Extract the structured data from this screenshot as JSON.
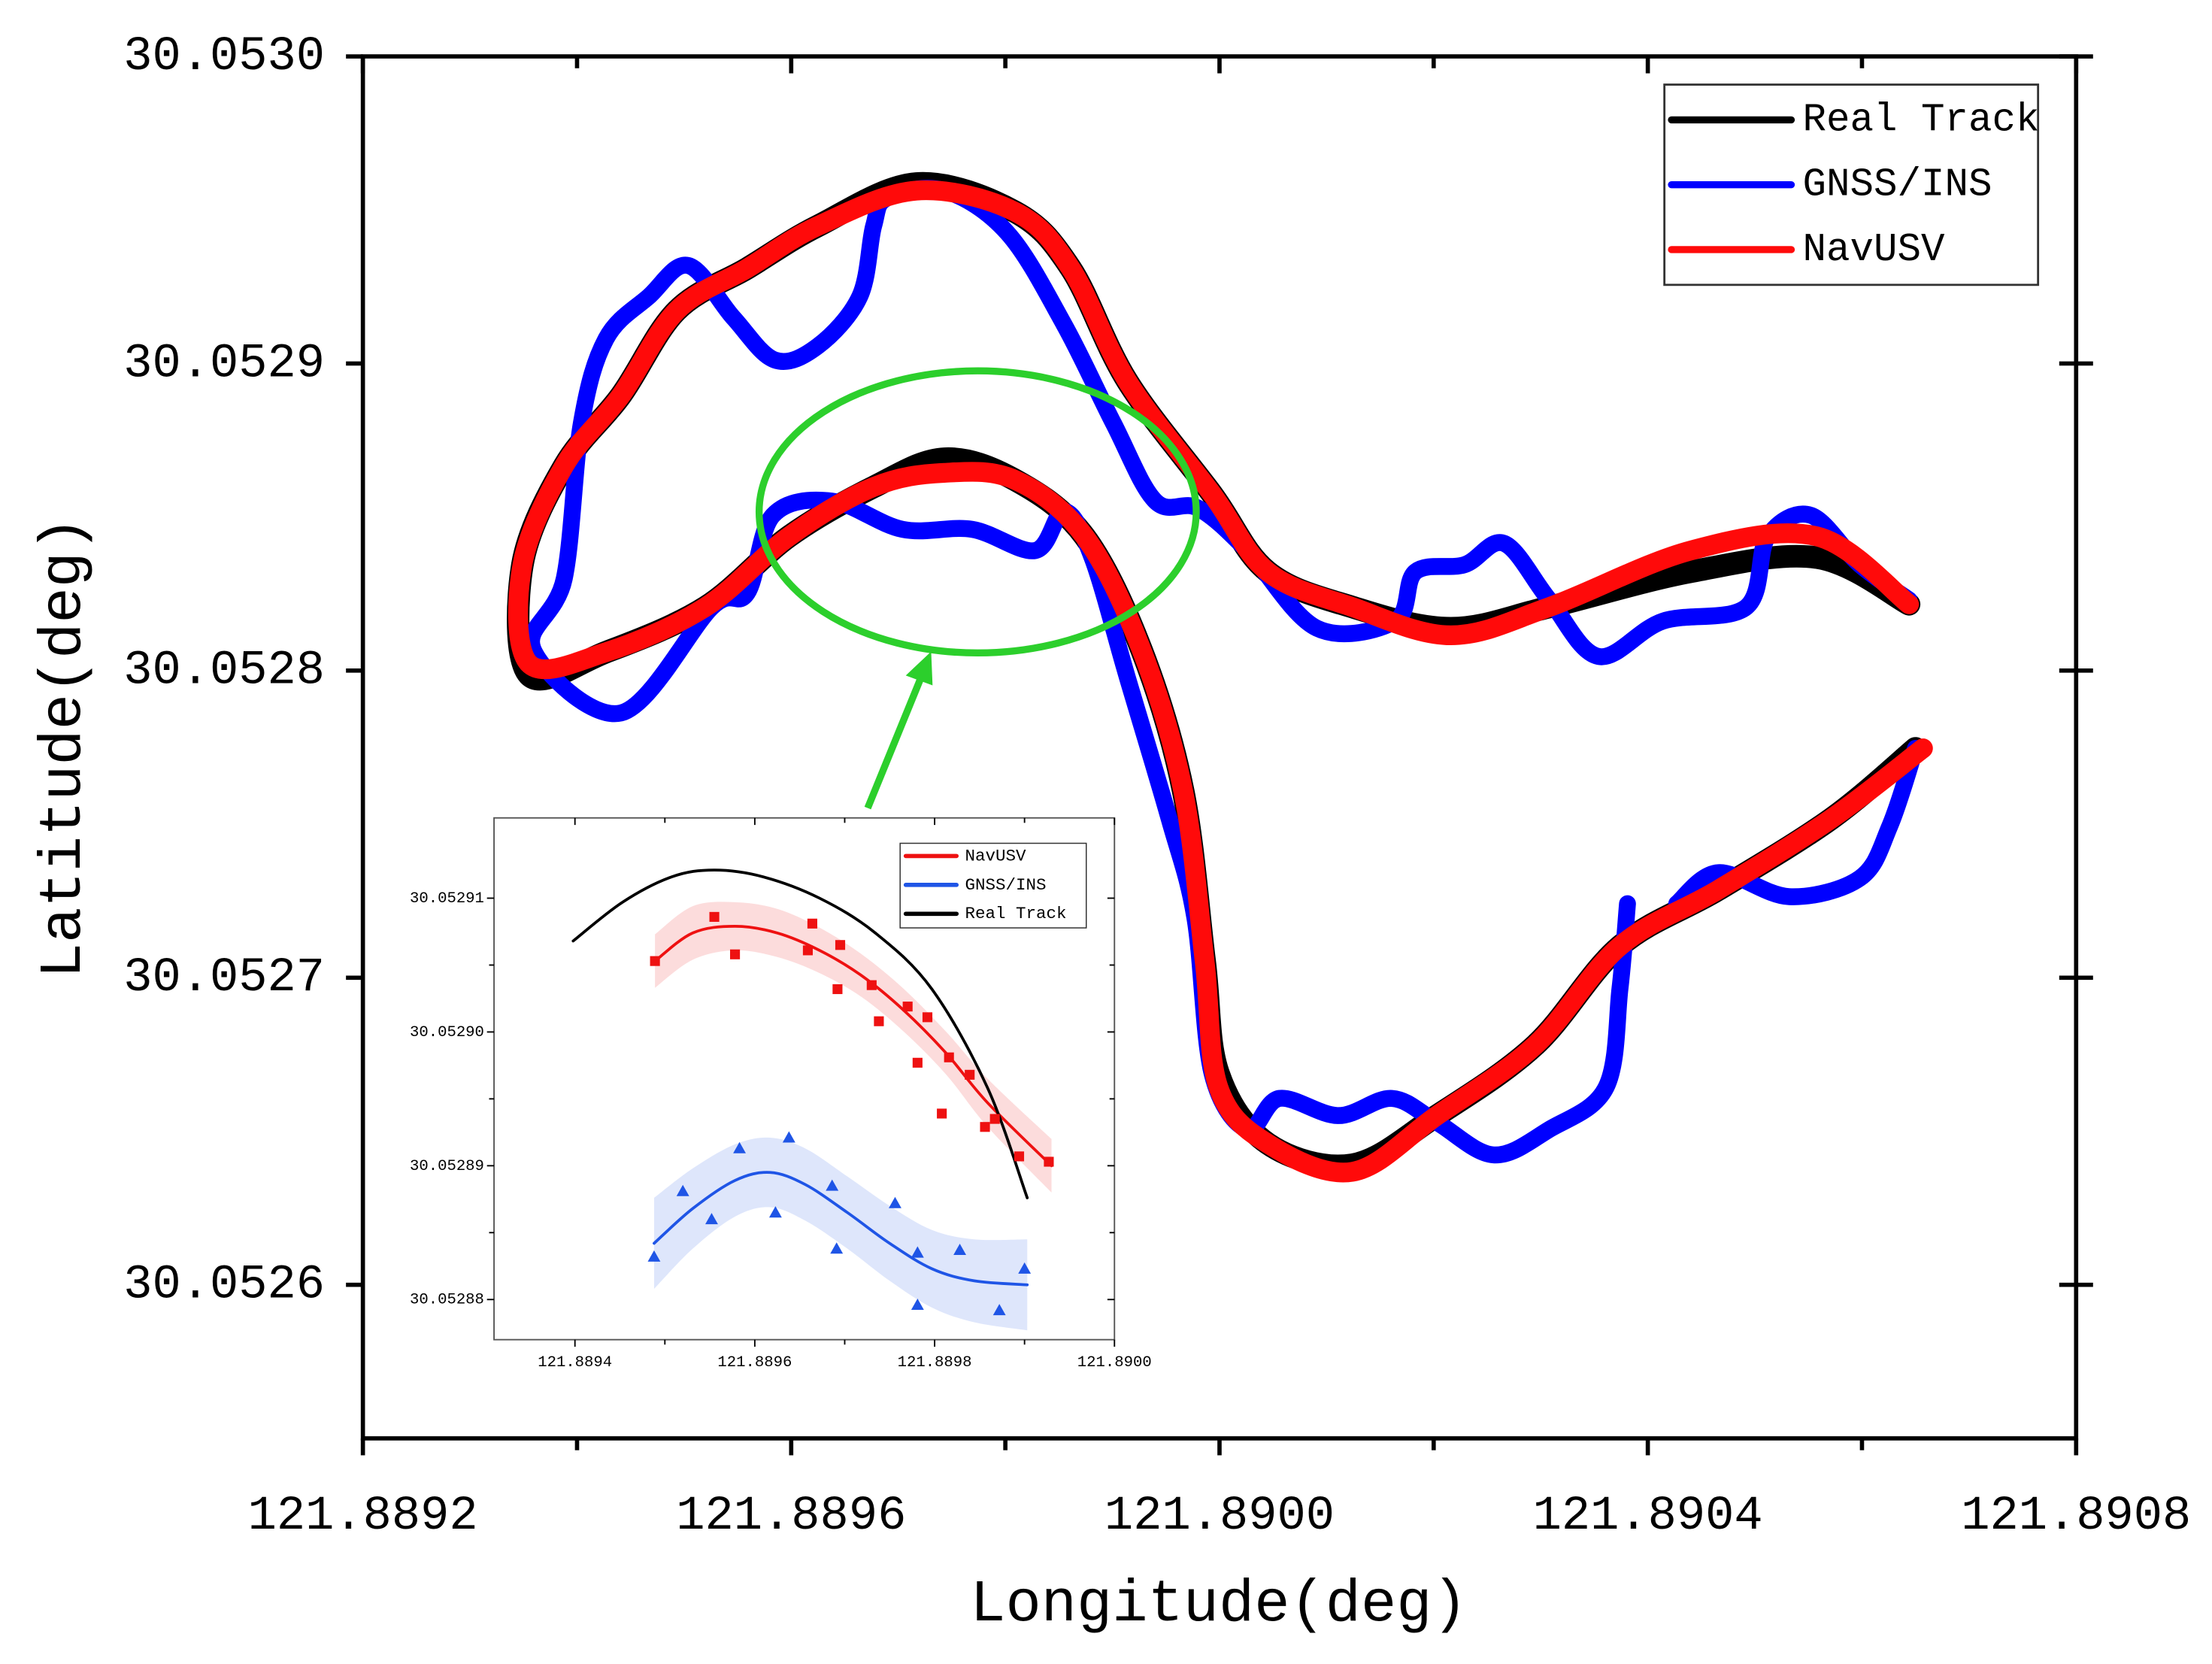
{
  "chart_data": [
    {
      "type": "line",
      "xlabel": "Longitude(deg)",
      "ylabel": "Latitude(deg)",
      "xlim": [
        121.8892,
        121.8908
      ],
      "ylim": [
        30.05255,
        30.053
      ],
      "xticks": [
        121.8892,
        121.8896,
        {
          "value": 121.89,
          "label": "121.8900"
        },
        121.8904,
        121.8908
      ],
      "xticks_minor": [
        121.8894,
        121.8898,
        121.8902,
        121.8906
      ],
      "yticks": [
        30.0526,
        30.0527,
        30.0528,
        30.0529,
        {
          "value": 30.053,
          "label": "30.0530"
        }
      ],
      "legend": "upper right",
      "series": [
        {
          "name": "Real Track",
          "color": "#000000",
          "x": [
            121.890644,
            121.890558,
            121.89044,
            121.890308,
            121.890216,
            121.890124,
            121.890045,
            121.889993,
            121.889914,
            121.889861,
            121.889809,
            121.889717,
            121.889625,
            121.889559,
            121.889493,
            121.889441,
            121.889388,
            121.889349,
            121.889355,
            121.889427,
            121.88952,
            121.889598,
            121.889677,
            121.889743,
            121.889809,
            121.889874,
            121.889927,
            121.889966,
            121.889986,
            121.889999,
            121.890045,
            121.890124,
            121.890203,
            121.890295,
            121.890374,
            121.890466,
            121.890571,
            121.89065
          ],
          "values": [
            30.0528216,
            30.0528368,
            30.0528322,
            30.0528207,
            30.0528138,
            30.0528207,
            30.0528322,
            30.0528575,
            30.0528942,
            30.052931,
            30.0529494,
            30.0529586,
            30.0529448,
            30.052931,
            30.0529172,
            30.0528896,
            30.0528667,
            30.0528345,
            30.0527986,
            30.052806,
            30.0528207,
            30.0528437,
            30.0528598,
            30.052869,
            30.0528621,
            30.0528437,
            30.0528069,
            30.0527609,
            30.0527057,
            30.0526689,
            30.052646,
            30.0526391,
            30.0526551,
            30.0526781,
            30.0527103,
            30.0527287,
            30.0527517,
            30.0527747
          ]
        },
        {
          "name": "GNSS/INS",
          "color": "#0000ff",
          "x": [
            121.890644,
            121.890598,
            121.890552,
            121.890512,
            121.890492,
            121.890414,
            121.890354,
            121.890308,
            121.890266,
            121.890229,
            121.890183,
            121.890164,
            121.890091,
            121.890026,
            121.88998,
            121.88994,
            121.889901,
            121.889855,
            121.889802,
            121.889743,
            121.88969,
            121.889677,
            121.889664,
            121.889625,
            121.889585,
            121.889546,
            121.889504,
            121.889467,
            121.889427,
            121.889404,
            121.889388,
            121.889359,
            121.889441,
            121.889526,
            121.889559,
            121.889583,
            121.889638,
            121.889704,
            121.889769,
            121.889828,
            121.889855,
            121.889881,
            121.889914,
            121.889953,
            121.889977,
            121.889993,
            121.890026,
            121.890056,
            121.890111,
            121.890161,
            121.890203,
            121.890256,
            121.890308,
            121.890361,
            121.890374,
            121.890381,
            null,
            121.890427,
            121.890466,
            121.890532,
            121.890598,
            121.890626,
            121.89065
          ],
          "values": [
            30.052823,
            30.0528345,
            30.0528506,
            30.0528437,
            30.0528207,
            30.0528161,
            30.0528046,
            30.052823,
            30.0528414,
            30.0528345,
            30.0528322,
            30.0528161,
            30.0528138,
            30.0528391,
            30.0528529,
            30.0528552,
            30.0528805,
            30.0529126,
            30.0529425,
            30.0529563,
            30.052954,
            30.0529448,
            30.0529218,
            30.0529057,
            30.0529011,
            30.0529149,
            30.0529319,
            30.0529218,
            30.052908,
            30.0528805,
            30.0528299,
            30.0528069,
            30.0527862,
            30.0528207,
            30.0528253,
            30.0528506,
            30.0528552,
            30.052846,
            30.052846,
            30.0528391,
            30.0528519,
            30.0528368,
            30.0527977,
            30.0527517,
            30.0527195,
            30.0526689,
            30.0526506,
            30.0526607,
            30.0526551,
            30.0526607,
            30.0526529,
            30.0526423,
            30.0526506,
            30.0526643,
            30.0526965,
            30.0527241,
            null,
            30.0527241,
            30.0527342,
            30.0527264,
            30.0527324,
            30.0527494,
            30.0527747
          ]
        },
        {
          "name": "NavUSV",
          "color": "#ff0a0a",
          "x": [
            121.890644,
            121.890558,
            121.89044,
            121.890308,
            121.890216,
            121.890124,
            121.890045,
            121.889993,
            121.889914,
            121.889861,
            121.889809,
            121.889717,
            121.889625,
            121.889559,
            121.889493,
            121.889441,
            121.889388,
            121.889349,
            121.889355,
            121.889427,
            121.88952,
            121.889598,
            121.889677,
            121.889743,
            121.889809,
            121.889874,
            121.889927,
            121.889966,
            121.889986,
            121.889999,
            121.890045,
            121.890124,
            121.890203,
            121.890295,
            121.890374,
            121.890466,
            121.890571,
            121.890657
          ],
          "values": [
            30.0528216,
            30.0528437,
            30.0528391,
            30.0528207,
            30.0528115,
            30.0528207,
            30.0528322,
            30.0528575,
            30.0528942,
            30.052931,
            30.0529494,
            30.0529563,
            30.0529448,
            30.052931,
            30.0529172,
            30.0528896,
            30.0528667,
            30.0528345,
            30.0528023,
            30.052806,
            30.0528207,
            30.0528437,
            30.0528598,
            30.0528644,
            30.0528621,
            30.0528437,
            30.0528069,
            30.0527609,
            30.0527057,
            30.0526643,
            30.052646,
            30.0526368,
            30.0526551,
            30.0526781,
            30.0527103,
            30.0527287,
            30.0527517,
            30.0527747
          ]
        }
      ]
    },
    {
      "type": "line",
      "xlim": [
        121.88931,
        121.89
      ],
      "ylim": [
        30.052877,
        30.052916
      ],
      "xticks": [
        121.8894,
        121.8896,
        121.8898,
        {
          "value": 121.89,
          "label": "121.8900"
        }
      ],
      "xticks_minor": [
        121.8895,
        121.8897,
        121.8899
      ],
      "yticks": [
        30.05288,
        30.05289,
        {
          "value": 30.0529,
          "label": "30.05290"
        },
        30.05291
      ],
      "yticks_minor": [
        30.052885,
        30.052895,
        30.052905
      ],
      "legend": "upper right",
      "series": [
        {
          "name": "NavUSV",
          "color": "#ee1111",
          "marker": "square",
          "x": [
            121.889489,
            121.889531,
            121.889578,
            121.889625,
            121.889672,
            121.889719,
            121.889766,
            121.889813,
            121.889859,
            121.88993
          ],
          "values": [
            30.0529053,
            30.0529074,
            30.0529079,
            30.0529074,
            30.0529061,
            30.0529042,
            30.0529016,
            30.0528984,
            30.0528947,
            30.05289
          ],
          "band": {
            "upper": [
              30.0529073,
              30.0529094,
              30.0529097,
              30.0529092,
              30.0529078,
              30.0529058,
              30.0529032,
              30.0529,
              30.0528965,
              30.052892
            ],
            "lower": [
              30.0529033,
              30.0529054,
              30.0529061,
              30.0529056,
              30.0529044,
              30.0529026,
              30.0529,
              30.0528968,
              30.0528929,
              30.052888
            ]
          },
          "points": {
            "x": [
              121.889489,
              121.889555,
              121.889578,
              121.889664,
              121.889659,
              121.889695,
              121.88973,
              121.889692,
              121.889738,
              121.88977,
              121.889792,
              121.889781,
              121.889816,
              121.889839,
              121.889808,
              121.889867,
              121.889856,
              121.889894,
              121.889927
            ],
            "values": [
              30.0529053,
              30.0529086,
              30.0529058,
              30.0529081,
              30.0529061,
              30.0529065,
              30.0529035,
              30.0529032,
              30.0529008,
              30.0529019,
              30.0529011,
              30.0528977,
              30.0528981,
              30.0528968,
              30.0528939,
              30.0528935,
              30.0528929,
              30.0528907,
              30.0528903
            ]
          }
        },
        {
          "name": "GNSS/INS",
          "color": "#1f55e6",
          "marker": "triangle",
          "x": [
            121.889488,
            121.889531,
            121.889578,
            121.889617,
            121.889656,
            121.889703,
            121.88975,
            121.889797,
            121.889844,
            121.889903
          ],
          "values": [
            30.0528842,
            30.0528868,
            30.0528889,
            30.0528895,
            30.0528886,
            30.0528865,
            30.0528842,
            30.0528823,
            30.0528814,
            30.0528811
          ],
          "band": {
            "upper": [
              30.0528876,
              30.0528898,
              30.0528916,
              30.0528921,
              30.0528913,
              30.0528892,
              30.052887,
              30.0528852,
              30.0528845,
              30.0528845
            ],
            "lower": [
              30.0528808,
              30.0528838,
              30.0528862,
              30.0528869,
              30.0528859,
              30.0528838,
              30.0528814,
              30.0528794,
              30.0528783,
              30.0528777
            ]
          },
          "points": {
            "x": [
              121.889488,
              121.88952,
              121.889552,
              121.889583,
              121.889623,
              121.889638,
              121.889686,
              121.889691,
              121.889756,
              121.889781,
              121.889781,
              121.889828,
              121.889872,
              121.8899
            ],
            "values": [
              30.0528832,
              30.0528881,
              30.052886,
              30.0528913,
              30.0528865,
              30.0528921,
              30.0528885,
              30.0528838,
              30.0528872,
              30.0528835,
              30.0528796,
              30.0528837,
              30.0528792,
              30.0528823
            ]
          }
        },
        {
          "name": "Real Track",
          "color": "#000000",
          "x": [
            121.889398,
            121.889453,
            121.889508,
            121.889555,
            121.889609,
            121.889672,
            121.889734,
            121.889797,
            121.889859,
            121.889903
          ],
          "values": [
            30.0529068,
            30.0529097,
            30.0529116,
            30.0529121,
            30.0529116,
            30.05291,
            30.0529074,
            30.0529032,
            30.0528958,
            30.0528876
          ]
        }
      ]
    }
  ]
}
